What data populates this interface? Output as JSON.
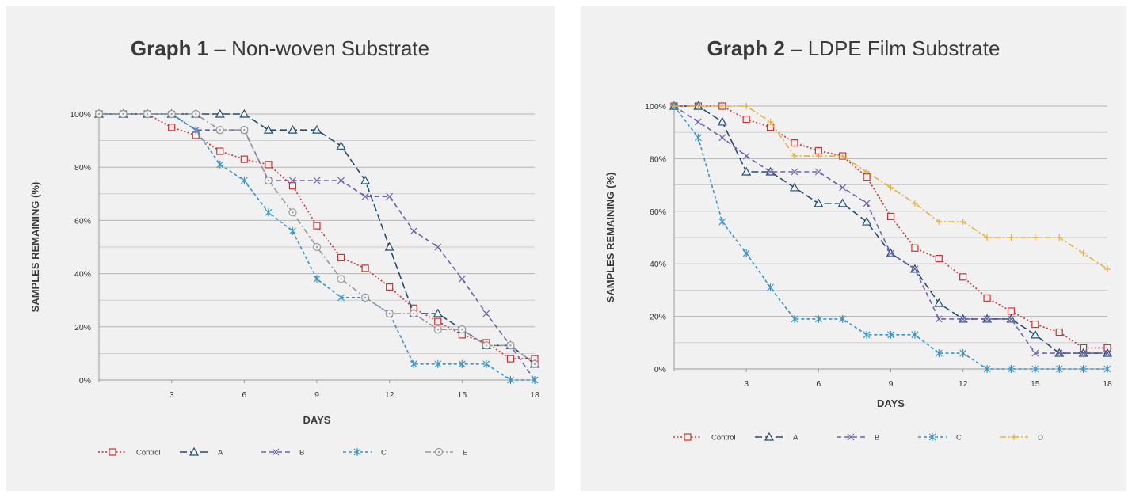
{
  "chart_data": [
    {
      "type": "line",
      "title_bold": "Graph 1",
      "title_sep": " – ",
      "title_rest": "Non-woven Substrate",
      "xlabel": "DAYS",
      "ylabel": "SAMPLES REMAINING (%)",
      "xlim": [
        0,
        18
      ],
      "ylim": [
        0,
        100
      ],
      "x_ticks": [
        3,
        6,
        9,
        12,
        15,
        18
      ],
      "y_ticks": [
        0,
        20,
        40,
        60,
        80,
        100
      ],
      "y_tick_labels": [
        "0%",
        "20%",
        "40%",
        "60%",
        "80%",
        "100%"
      ],
      "grid": true,
      "legend_position": "bottom",
      "series": [
        {
          "name": "Control",
          "color": "#cc3333",
          "dash": "dotted",
          "marker": "square",
          "x": [
            0,
            1,
            2,
            3,
            4,
            5,
            6,
            7,
            8,
            9,
            10,
            11,
            12,
            13,
            14,
            15,
            16,
            17,
            18
          ],
          "y": [
            100,
            100,
            100,
            95,
            92,
            86,
            83,
            81,
            73,
            58,
            46,
            42,
            35,
            27,
            22,
            17,
            14,
            8,
            8
          ]
        },
        {
          "name": "A",
          "color": "#1f4e6e",
          "dash": "longdash",
          "marker": "triangle",
          "x": [
            0,
            1,
            2,
            3,
            4,
            5,
            6,
            7,
            8,
            9,
            10,
            11,
            12,
            13,
            14,
            15,
            16,
            17,
            18
          ],
          "y": [
            100,
            100,
            100,
            100,
            100,
            100,
            100,
            94,
            94,
            94,
            88,
            75,
            50,
            25,
            25,
            19,
            13,
            13,
            6
          ]
        },
        {
          "name": "B",
          "color": "#6e62b0",
          "dash": "dashed",
          "marker": "x",
          "x": [
            0,
            1,
            2,
            3,
            4,
            5,
            6,
            7,
            8,
            9,
            10,
            11,
            12,
            13,
            14,
            15,
            16,
            17,
            18
          ],
          "y": [
            100,
            100,
            100,
            100,
            94,
            94,
            94,
            75,
            75,
            75,
            75,
            69,
            69,
            56,
            50,
            38,
            25,
            13,
            0
          ]
        },
        {
          "name": "C",
          "color": "#3a94c8",
          "dash": "shortdash",
          "marker": "asterisk",
          "x": [
            0,
            1,
            2,
            3,
            4,
            5,
            6,
            7,
            8,
            9,
            10,
            11,
            12,
            13,
            14,
            15,
            16,
            17,
            18
          ],
          "y": [
            100,
            100,
            100,
            100,
            94,
            81,
            75,
            63,
            56,
            38,
            31,
            31,
            25,
            6,
            6,
            6,
            6,
            0,
            0
          ]
        },
        {
          "name": "E",
          "color": "#9a9a9a",
          "dash": "dashdot",
          "marker": "circle",
          "x": [
            0,
            1,
            2,
            3,
            4,
            5,
            6,
            7,
            8,
            9,
            10,
            11,
            12,
            13,
            14,
            15,
            16,
            17,
            18
          ],
          "y": [
            100,
            100,
            100,
            100,
            100,
            94,
            94,
            75,
            63,
            50,
            38,
            31,
            25,
            25,
            19,
            19,
            13,
            13,
            6
          ]
        }
      ]
    },
    {
      "type": "line",
      "title_bold": "Graph 2",
      "title_sep": " – ",
      "title_rest": "LDPE Film Substrate",
      "xlabel": "DAYS",
      "ylabel": "SAMPLES REMAINING (%)",
      "xlim": [
        0,
        18
      ],
      "ylim": [
        0,
        100
      ],
      "x_ticks": [
        3,
        6,
        9,
        12,
        15,
        18
      ],
      "y_ticks": [
        0,
        20,
        40,
        60,
        80,
        100
      ],
      "y_tick_labels": [
        "0%",
        "20%",
        "40%",
        "60%",
        "80%",
        "100%"
      ],
      "grid": true,
      "legend_position": "bottom",
      "series": [
        {
          "name": "Control",
          "color": "#cc3333",
          "dash": "dotted",
          "marker": "square",
          "x": [
            0,
            1,
            2,
            3,
            4,
            5,
            6,
            7,
            8,
            9,
            10,
            11,
            12,
            13,
            14,
            15,
            16,
            17,
            18
          ],
          "y": [
            100,
            100,
            100,
            95,
            92,
            86,
            83,
            81,
            73,
            58,
            46,
            42,
            35,
            27,
            22,
            17,
            14,
            8,
            8
          ]
        },
        {
          "name": "A",
          "color": "#1f4e6e",
          "dash": "longdash",
          "marker": "triangle",
          "x": [
            0,
            1,
            2,
            3,
            4,
            5,
            6,
            7,
            8,
            9,
            10,
            11,
            12,
            13,
            14,
            15,
            16,
            17,
            18
          ],
          "y": [
            100,
            100,
            94,
            75,
            75,
            69,
            63,
            63,
            56,
            44,
            38,
            25,
            19,
            19,
            19,
            13,
            6,
            6,
            6
          ]
        },
        {
          "name": "B",
          "color": "#6e62b0",
          "dash": "dashed",
          "marker": "x",
          "x": [
            0,
            1,
            2,
            3,
            4,
            5,
            6,
            7,
            8,
            9,
            10,
            11,
            12,
            13,
            14,
            15,
            16,
            17,
            18
          ],
          "y": [
            100,
            94,
            88,
            81,
            75,
            75,
            75,
            69,
            63,
            44,
            38,
            19,
            19,
            19,
            19,
            6,
            6,
            6,
            6
          ]
        },
        {
          "name": "C",
          "color": "#3a94c8",
          "dash": "shortdash",
          "marker": "asterisk",
          "x": [
            0,
            1,
            2,
            3,
            4,
            5,
            6,
            7,
            8,
            9,
            10,
            11,
            12,
            13,
            14,
            15,
            16,
            17,
            18
          ],
          "y": [
            100,
            88,
            56,
            44,
            31,
            19,
            19,
            19,
            13,
            13,
            13,
            6,
            6,
            0,
            0,
            0,
            0,
            0,
            0
          ]
        },
        {
          "name": "D",
          "color": "#e8b040",
          "dash": "dashdot",
          "marker": "plus",
          "x": [
            0,
            1,
            2,
            3,
            4,
            5,
            6,
            7,
            8,
            9,
            10,
            11,
            12,
            13,
            14,
            15,
            16,
            17,
            18
          ],
          "y": [
            100,
            100,
            100,
            100,
            94,
            81,
            81,
            81,
            75,
            69,
            63,
            56,
            56,
            50,
            50,
            50,
            50,
            44,
            38
          ]
        }
      ]
    }
  ]
}
